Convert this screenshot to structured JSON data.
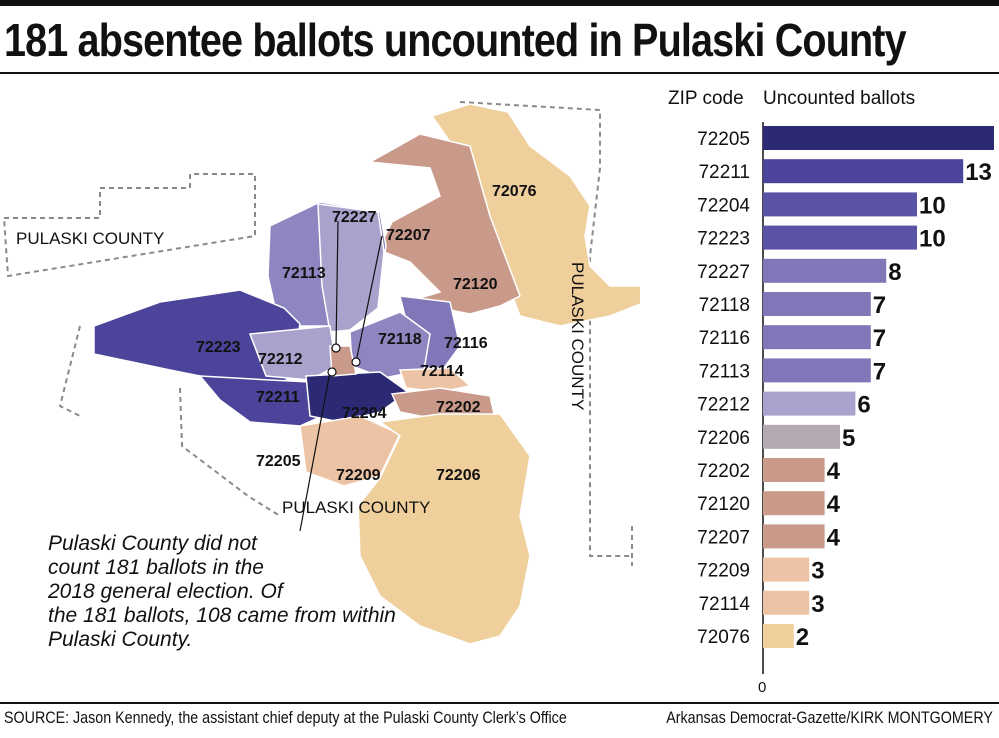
{
  "title": "181 absentee ballots uncounted in Pulaski County",
  "source": "SOURCE: Jason Kennedy, the assistant chief deputy at the Pulaski County Clerk’s Office",
  "credit": "Arkansas Democrat-Gazette/KIRK MONTGOMERY",
  "note_lines": [
    "Pulaski County did not",
    "count 181 ballots in the",
    "2018 general election. Of",
    "the 181 ballots, 108 came from within",
    "Pulaski County."
  ],
  "map": {
    "county_labels": [
      "PULASKI COUNTY",
      "PULASKI COUNTY",
      "PULASKI COUNTY"
    ],
    "zip_labels": [
      "72076",
      "72120",
      "72227",
      "72207",
      "72113",
      "72118",
      "72116",
      "72223",
      "72212",
      "72114",
      "72211",
      "72204",
      "72202",
      "72205",
      "72209",
      "72206"
    ],
    "colors": {
      "dark": "#2d2a75",
      "purple1": "#4b449a",
      "purple2": "#5a53a6",
      "purple3": "#7f77b8",
      "purple4": "#8d86c0",
      "lavender": "#a8a2cd",
      "gray": "#b2a9b1",
      "rose": "#c99a8a",
      "peach": "#ecc3a4",
      "tan": "#efcf9c"
    }
  },
  "chart_data": {
    "type": "bar",
    "orientation": "horizontal",
    "xlabel": "ZIP code",
    "ylabel": "Uncounted ballots",
    "categories": [
      "72205",
      "72211",
      "72204",
      "72223",
      "72227",
      "72118",
      "72116",
      "72113",
      "72212",
      "72206",
      "72202",
      "72120",
      "72207",
      "72209",
      "72114",
      "72076"
    ],
    "values": [
      15,
      13,
      10,
      10,
      8,
      7,
      7,
      7,
      6,
      5,
      4,
      4,
      4,
      3,
      3,
      2
    ],
    "colors": [
      "#2d2a75",
      "#4b449a",
      "#5a53a6",
      "#5a53a6",
      "#7f77b8",
      "#7f77b8",
      "#7f77b8",
      "#7f77b8",
      "#a8a2cd",
      "#b2a9b1",
      "#c99a8a",
      "#c99a8a",
      "#c99a8a",
      "#ecc3a4",
      "#ecc3a4",
      "#efcf9c"
    ],
    "axis_tick": "0",
    "xlim": [
      0,
      15
    ]
  }
}
